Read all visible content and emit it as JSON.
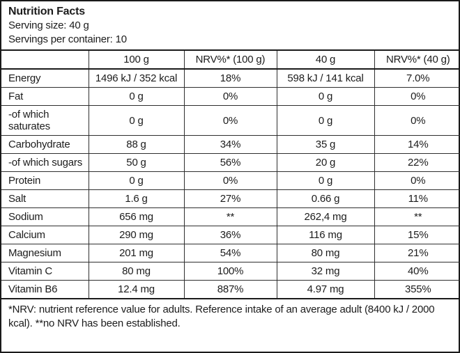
{
  "title_block": {
    "title": "Nutrition Facts",
    "serving_size": "Serving size: 40 g",
    "servings_per_container": "Servings per container: 10"
  },
  "table": {
    "columns": [
      "",
      "100 g",
      "NRV%* (100 g)",
      "40 g",
      "NRV%* (40 g)"
    ],
    "rows": [
      {
        "label": "Energy",
        "per_100g": "1496 kJ / 352 kcal",
        "nrv_100g": "18%",
        "per_40g": "598 kJ / 141 kcal",
        "nrv_40g": "7.0%"
      },
      {
        "label": "Fat",
        "per_100g": "0 g",
        "nrv_100g": "0%",
        "per_40g": "0 g",
        "nrv_40g": "0%"
      },
      {
        "label": "-of which saturates",
        "per_100g": "0 g",
        "nrv_100g": "0%",
        "per_40g": "0 g",
        "nrv_40g": "0%"
      },
      {
        "label": "Carbohydrate",
        "per_100g": "88 g",
        "nrv_100g": "34%",
        "per_40g": "35 g",
        "nrv_40g": "14%"
      },
      {
        "label": "-of which sugars",
        "per_100g": "50 g",
        "nrv_100g": "56%",
        "per_40g": "20 g",
        "nrv_40g": "22%"
      },
      {
        "label": "Protein",
        "per_100g": "0 g",
        "nrv_100g": "0%",
        "per_40g": "0 g",
        "nrv_40g": "0%"
      },
      {
        "label": "Salt",
        "per_100g": "1.6 g",
        "nrv_100g": "27%",
        "per_40g": "0.66 g",
        "nrv_40g": "11%"
      },
      {
        "label": "Sodium",
        "per_100g": "656 mg",
        "nrv_100g": "**",
        "per_40g": "262,4 mg",
        "nrv_40g": "**"
      },
      {
        "label": "Calcium",
        "per_100g": "290 mg",
        "nrv_100g": "36%",
        "per_40g": "116 mg",
        "nrv_40g": "15%"
      },
      {
        "label": "Magnesium",
        "per_100g": "201 mg",
        "nrv_100g": "54%",
        "per_40g": "80 mg",
        "nrv_40g": "21%"
      },
      {
        "label": "Vitamin C",
        "per_100g": "80 mg",
        "nrv_100g": "100%",
        "per_40g": "32 mg",
        "nrv_40g": "40%"
      },
      {
        "label": "Vitamin B6",
        "per_100g": "12.4 mg",
        "nrv_100g": "887%",
        "per_40g": "4.97 mg",
        "nrv_40g": "355%"
      }
    ]
  },
  "footnote": "*NRV: nutrient reference value for adults. Reference intake of an average adult (8400 kJ / 2000 kcal). **no NRV has been established."
}
